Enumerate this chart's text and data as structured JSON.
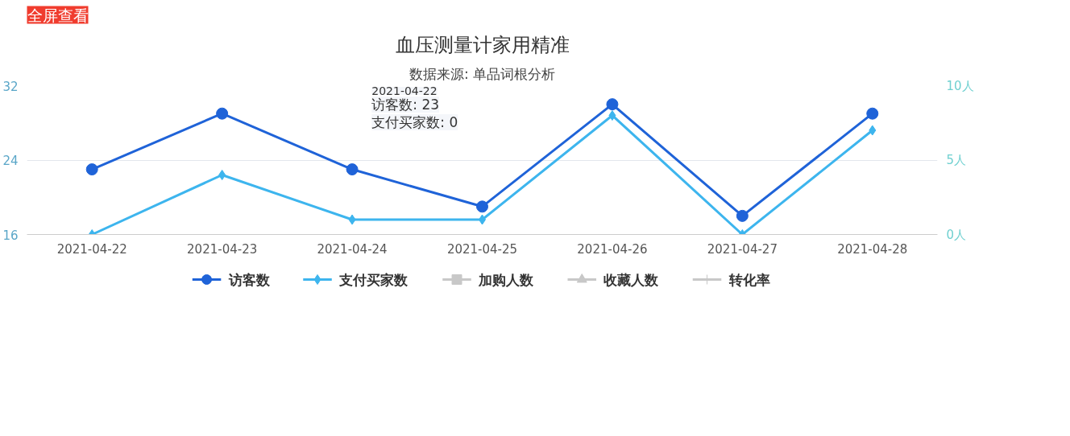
{
  "chart_data": {
    "type": "line",
    "title": "血压测量计家用精准",
    "subtitle": "数据来源: 单品词根分析",
    "categories": [
      "2021-04-22",
      "2021-04-23",
      "2021-04-24",
      "2021-04-25",
      "2021-04-26",
      "2021-04-27",
      "2021-04-28"
    ],
    "series": [
      {
        "name": "访客数",
        "color": "#1f63d8",
        "marker": "circle",
        "values": [
          23,
          29,
          23,
          19,
          30,
          18,
          29
        ]
      },
      {
        "name": "支付买家数",
        "color": "#3db5ee",
        "marker": "diamond",
        "axis": "y2",
        "values": [
          0,
          4,
          1,
          1,
          8,
          0,
          7
        ]
      },
      {
        "name": "加购人数",
        "color": "#c8c8c8",
        "marker": "square",
        "values": [
          null,
          null,
          null,
          null,
          null,
          null,
          null
        ]
      },
      {
        "name": "收藏人数",
        "color": "#c8c8c8",
        "marker": "triangle",
        "values": [
          null,
          null,
          null,
          null,
          null,
          null,
          null
        ]
      },
      {
        "name": "转化率",
        "color": "#c8c8c8",
        "marker": "cross",
        "axis": "y2",
        "values": [
          null,
          null,
          null,
          null,
          null,
          null,
          null
        ]
      }
    ],
    "ylim": [
      16,
      32
    ],
    "yticks": [
      16,
      24,
      32
    ],
    "y2lim": [
      0,
      10
    ],
    "y2ticks": [
      {
        "value": 0,
        "label": "0人"
      },
      {
        "value": 5,
        "label": "5人"
      },
      {
        "value": 10,
        "label": "10人"
      }
    ],
    "grid": "y",
    "legend": "bottom",
    "annotations": [
      "全屏查看",
      "2021-04-22",
      "访客数: 23",
      "支付买家数: 0"
    ]
  }
}
